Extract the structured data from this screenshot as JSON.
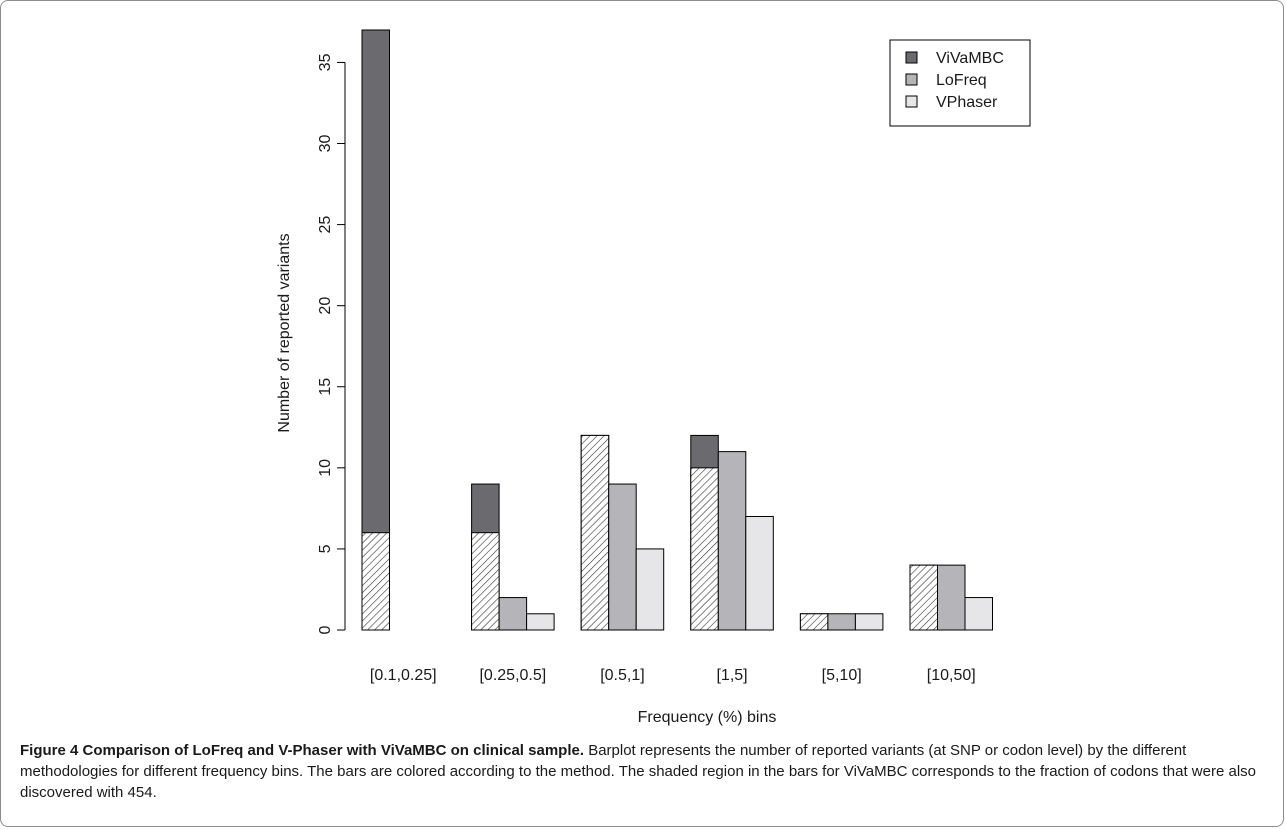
{
  "chart_data": {
    "type": "bar",
    "xlabel": "Frequency (%) bins",
    "ylabel": "Number of reported variants",
    "ylim": [
      0,
      37
    ],
    "yticks": [
      0,
      5,
      10,
      15,
      20,
      25,
      30,
      35
    ],
    "categories": [
      "[0.1,0.25]",
      "[0.25,0.5]",
      "[0.5,1]",
      "[1,5]",
      "[5,10]",
      "[10,50]"
    ],
    "series": [
      {
        "name": "ViVaMBC",
        "values": [
          37,
          9,
          12,
          12,
          1,
          4
        ],
        "shaded_portion": [
          6,
          6,
          12,
          10,
          1,
          4
        ],
        "color": "#6b6b6f"
      },
      {
        "name": "LoFreq",
        "values": [
          0,
          2,
          9,
          11,
          1,
          4
        ],
        "color": "#b5b5b9"
      },
      {
        "name": "VPhaser",
        "values": [
          0,
          1,
          5,
          7,
          1,
          2
        ],
        "color": "#e6e6e8"
      }
    ],
    "legend": "top-right",
    "grid": false
  },
  "caption": {
    "bold": "Figure 4 Comparison of LoFreq and V-Phaser with ViVaMBC on clinical sample.",
    "text": "Barplot represents the number of reported variants (at SNP or codon level) by the different methodologies for different frequency bins. The bars are colored according to the method. The shaded region in the bars for ViVaMBC corresponds to the fraction of codons that were also discovered with 454."
  }
}
